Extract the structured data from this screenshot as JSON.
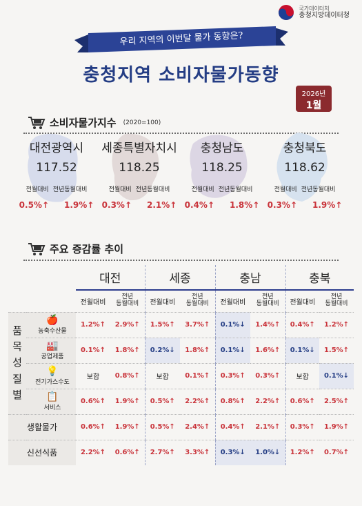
{
  "agency": {
    "line1": "국가데이터처",
    "line2": "충청지방데이터청"
  },
  "ribbon": "우리 지역의 이번달 물가 동향은?",
  "title": "충청지역 소비자물가동향",
  "date": {
    "year": "2026년",
    "month": "1월"
  },
  "cpi_section": {
    "label": "소비자물가지수",
    "sub": "(2020=100)"
  },
  "regions": [
    {
      "name": "대전광역시",
      "index": "117.52",
      "h1": "전월대비",
      "h2": "전년동월대비",
      "v1": "0.5%↑",
      "v2": "1.9%↑",
      "blob": "#d7dcec"
    },
    {
      "name": "세종특별자치시",
      "index": "118.25",
      "h1": "전월대비",
      "h2": "전년동월대비",
      "v1": "0.3%↑",
      "v2": "2.1%↑",
      "blob": "#e2d9d8"
    },
    {
      "name": "충청남도",
      "index": "118.25",
      "h1": "전월대비",
      "h2": "전년동월대비",
      "v1": "0.4%↑",
      "v2": "1.8%↑",
      "blob": "#dcd6e4"
    },
    {
      "name": "충청북도",
      "index": "118.62",
      "h1": "전월대비",
      "h2": "전년동월대비",
      "v1": "0.3%↑",
      "v2": "1.9%↑",
      "blob": "#d6e2ef"
    }
  ],
  "trend_section": {
    "label": "주요 증감률 추이"
  },
  "table": {
    "regions": [
      "대전",
      "세종",
      "충남",
      "충북"
    ],
    "sub1": "전월대비",
    "sub2a": "전년",
    "sub2b": "동월대비",
    "category": "품목성질별",
    "cat_chars": [
      "품",
      "목",
      "성",
      "질",
      "별"
    ],
    "rows": [
      {
        "label": "농축수산물",
        "icon": "🍎",
        "vals": [
          [
            "1.2%↑",
            "up"
          ],
          [
            "2.9%↑",
            "up"
          ],
          [
            "1.5%↑",
            "up"
          ],
          [
            "3.7%↑",
            "up"
          ],
          [
            "0.1%↓",
            "dn"
          ],
          [
            "1.4%↑",
            "up"
          ],
          [
            "0.4%↑",
            "up"
          ],
          [
            "1.2%↑",
            "up"
          ]
        ]
      },
      {
        "label": "공업제품",
        "icon": "🏭",
        "vals": [
          [
            "0.1%↑",
            "up"
          ],
          [
            "1.8%↑",
            "up"
          ],
          [
            "0.2%↓",
            "dn"
          ],
          [
            "1.8%↑",
            "up"
          ],
          [
            "0.1%↓",
            "dn"
          ],
          [
            "1.6%↑",
            "up"
          ],
          [
            "0.1%↓",
            "dn"
          ],
          [
            "1.5%↑",
            "up"
          ]
        ]
      },
      {
        "label": "전기가스수도",
        "icon": "💡",
        "vals": [
          [
            "보합",
            "neu"
          ],
          [
            "0.8%↑",
            "up"
          ],
          [
            "보합",
            "neu"
          ],
          [
            "0.1%↑",
            "up"
          ],
          [
            "0.3%↑",
            "up"
          ],
          [
            "0.3%↑",
            "up"
          ],
          [
            "보합",
            "neu"
          ],
          [
            "0.1%↓",
            "dn"
          ]
        ]
      },
      {
        "label": "서비스",
        "icon": "📋",
        "vals": [
          [
            "0.6%↑",
            "up"
          ],
          [
            "1.9%↑",
            "up"
          ],
          [
            "0.5%↑",
            "up"
          ],
          [
            "2.2%↑",
            "up"
          ],
          [
            "0.8%↑",
            "up"
          ],
          [
            "2.2%↑",
            "up"
          ],
          [
            "0.6%↑",
            "up"
          ],
          [
            "2.5%↑",
            "up"
          ]
        ]
      },
      {
        "label": "생활물가",
        "icon": "",
        "vals": [
          [
            "0.6%↑",
            "up"
          ],
          [
            "1.9%↑",
            "up"
          ],
          [
            "0.5%↑",
            "up"
          ],
          [
            "2.4%↑",
            "up"
          ],
          [
            "0.4%↑",
            "up"
          ],
          [
            "2.1%↑",
            "up"
          ],
          [
            "0.3%↑",
            "up"
          ],
          [
            "1.9%↑",
            "up"
          ]
        ]
      },
      {
        "label": "신선식품",
        "icon": "",
        "vals": [
          [
            "2.2%↑",
            "up"
          ],
          [
            "0.6%↑",
            "up"
          ],
          [
            "2.7%↑",
            "up"
          ],
          [
            "3.3%↑",
            "up"
          ],
          [
            "0.3%↓",
            "dn"
          ],
          [
            "1.0%↓",
            "dn"
          ],
          [
            "1.2%↑",
            "up"
          ],
          [
            "0.7%↑",
            "up"
          ]
        ]
      }
    ]
  },
  "colors": {
    "navy": "#243d84",
    "red": "#c9333a",
    "badge": "#8b2a2e"
  }
}
